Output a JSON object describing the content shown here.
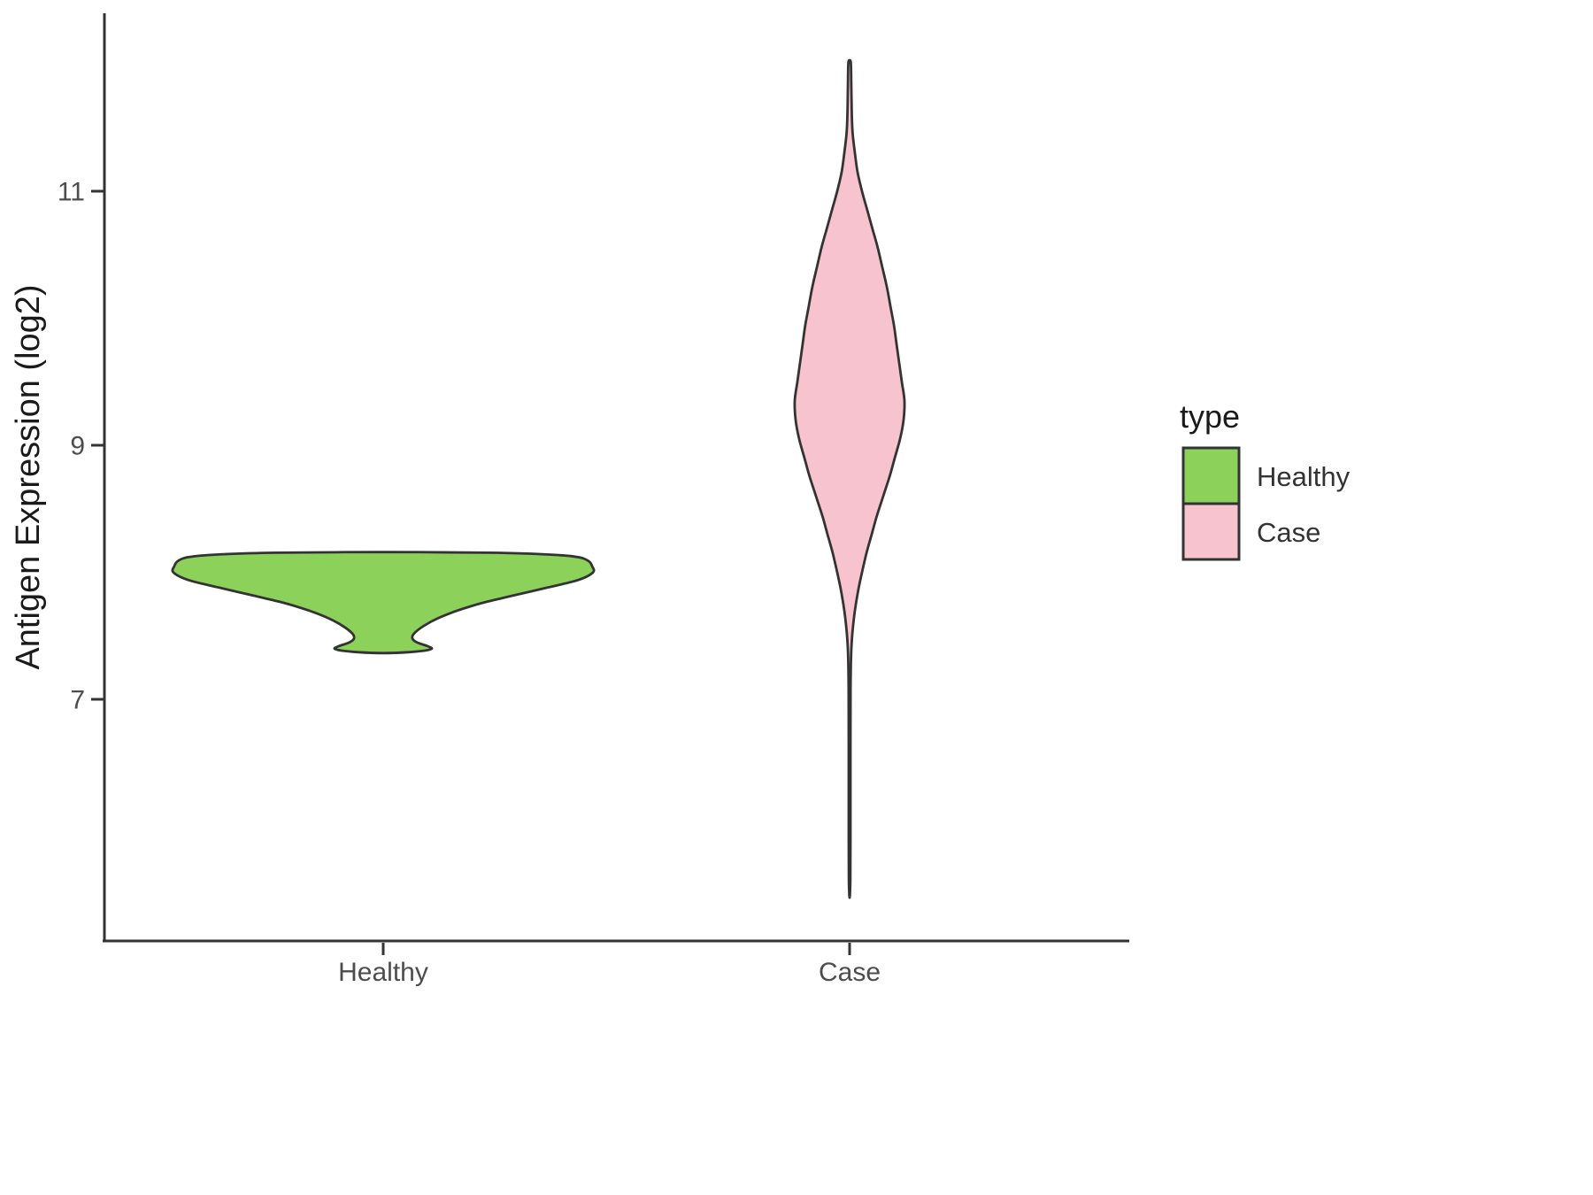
{
  "figure": {
    "background": "#ffffff",
    "axis_color": "#333333",
    "tick_label_color": "#4d4d4d"
  },
  "chart_data": {
    "type": "violin",
    "title": "",
    "xlabel": "",
    "ylabel": "Antigen Expression (log2)",
    "categories": [
      "Healthy",
      "Case"
    ],
    "ylim": [
      5.1,
      12.4
    ],
    "yticks": [
      7,
      9,
      11
    ],
    "ytick_labels": [
      "7",
      "9",
      "11"
    ],
    "grid": false,
    "legend": {
      "title": "type",
      "position": "right",
      "entries": [
        {
          "label": "Healthy",
          "fill": "#8BD15A"
        },
        {
          "label": "Case",
          "fill": "#F6C3CF"
        }
      ]
    },
    "profile_units": "each point is [y_value_log2, density_halfwidth_px]",
    "series": [
      {
        "name": "Healthy",
        "category": "Healthy",
        "fill": "#8BD15A",
        "outline": "#333333",
        "value_range": [
          7.37,
          8.16
        ],
        "peak_value": 8.0,
        "density_profile": [
          [
            8.16,
            0
          ],
          [
            8.155,
            120
          ],
          [
            8.14,
            190
          ],
          [
            8.12,
            220
          ],
          [
            8.09,
            232
          ],
          [
            8.05,
            236
          ],
          [
            8.0,
            237
          ],
          [
            7.94,
            220
          ],
          [
            7.88,
            185
          ],
          [
            7.82,
            148
          ],
          [
            7.76,
            112
          ],
          [
            7.7,
            84
          ],
          [
            7.64,
            62
          ],
          [
            7.58,
            46
          ],
          [
            7.52,
            35
          ],
          [
            7.48,
            33
          ],
          [
            7.45,
            38
          ],
          [
            7.42,
            50
          ],
          [
            7.4,
            55
          ],
          [
            7.385,
            47
          ],
          [
            7.372,
            28
          ],
          [
            7.365,
            0
          ]
        ]
      },
      {
        "name": "Case",
        "category": "Case",
        "fill": "#F6C3CF",
        "outline": "#333333",
        "value_range": [
          5.44,
          12.03
        ],
        "peak_value": 9.35,
        "density_profile": [
          [
            12.03,
            0
          ],
          [
            12.0,
            1.5
          ],
          [
            11.8,
            2
          ],
          [
            11.6,
            2.5
          ],
          [
            11.45,
            3.5
          ],
          [
            11.3,
            6
          ],
          [
            11.15,
            9
          ],
          [
            11.0,
            14
          ],
          [
            10.85,
            20
          ],
          [
            10.7,
            26
          ],
          [
            10.55,
            32
          ],
          [
            10.4,
            37
          ],
          [
            10.25,
            42
          ],
          [
            10.1,
            46
          ],
          [
            9.95,
            50
          ],
          [
            9.8,
            53
          ],
          [
            9.65,
            56
          ],
          [
            9.5,
            59
          ],
          [
            9.35,
            62
          ],
          [
            9.2,
            61
          ],
          [
            9.05,
            57
          ],
          [
            8.9,
            51
          ],
          [
            8.75,
            45
          ],
          [
            8.6,
            38
          ],
          [
            8.45,
            31
          ],
          [
            8.3,
            25
          ],
          [
            8.15,
            19
          ],
          [
            8.0,
            14
          ],
          [
            7.85,
            9.5
          ],
          [
            7.7,
            6
          ],
          [
            7.55,
            3.5
          ],
          [
            7.4,
            2
          ],
          [
            7.2,
            1.3
          ],
          [
            7.0,
            1.1
          ],
          [
            6.6,
            1.0
          ],
          [
            6.2,
            1.0
          ],
          [
            5.9,
            1.0
          ],
          [
            5.7,
            0.9
          ],
          [
            5.55,
            0.8
          ],
          [
            5.44,
            0
          ]
        ]
      }
    ]
  }
}
